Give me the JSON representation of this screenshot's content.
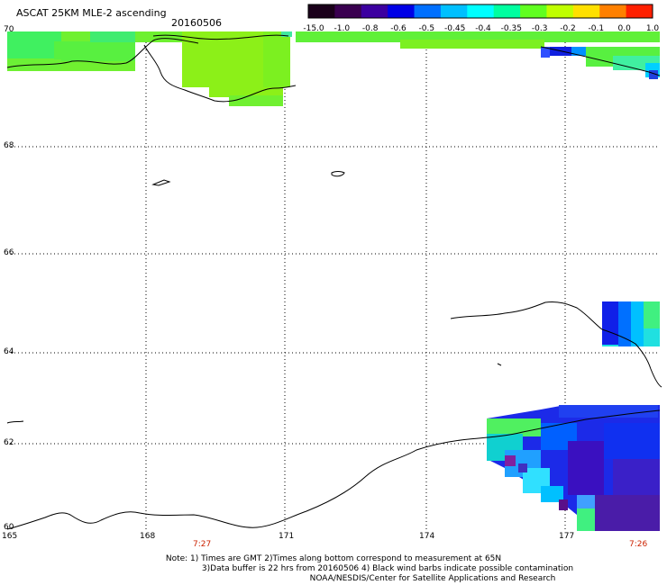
{
  "header": {
    "title": "ASCAT 25KM MLE-2 ascending",
    "date": "20160506"
  },
  "colorbar": {
    "labels": [
      "-15.0",
      "-1.0",
      "-0.8",
      "-0.6",
      "-0.5",
      "-0.45",
      "-0.4",
      "-0.35",
      "-0.3",
      "-0.2",
      "-0.1",
      "0.0",
      "1.0"
    ],
    "colors": [
      "#1a001a",
      "#3a0050",
      "#3c00a0",
      "#0000e6",
      "#0070ff",
      "#00c0ff",
      "#00ffff",
      "#00ffa0",
      "#60ff20",
      "#c0ff00",
      "#ffe000",
      "#ff8000",
      "#ff2000"
    ]
  },
  "axes": {
    "lat_labels": [
      "70",
      "68",
      "66",
      "64",
      "62",
      "60"
    ],
    "lon_labels": [
      "165",
      "168",
      "171",
      "174",
      "177"
    ],
    "time_labels": [
      "7:27",
      "7:26"
    ]
  },
  "footer": {
    "note1": "Note: 1) Times are GMT 2)Times along bottom correspond to measurement at 65N",
    "note2": "3)Data buffer is 22 hrs from 20160506 4) Black wind barbs indicate possible contamination",
    "credit": "NOAA/NESDIS/Center for Satellite Applications and Research"
  }
}
